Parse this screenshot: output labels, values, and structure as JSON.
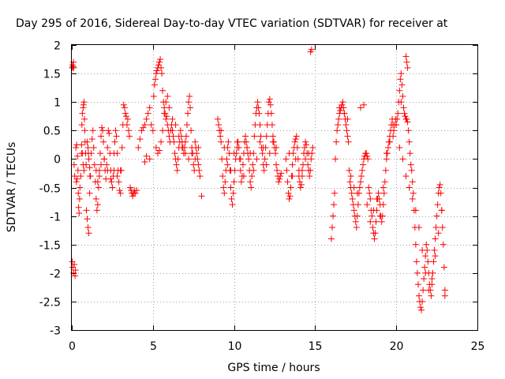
{
  "chart_data": {
    "type": "scatter",
    "title": "Day 295 of 2016, Sidereal Day-to-day VTEC variation (SDTVAR) for receiver at",
    "xlabel": "GPS time / hours",
    "ylabel": "SDTVAR / TECUs",
    "xlim": [
      0,
      25
    ],
    "ylim": [
      -3,
      2
    ],
    "x_ticks": [
      "0",
      "5",
      "10",
      "15",
      "20",
      "25"
    ],
    "y_ticks": [
      "-3",
      "-2.5",
      "-2",
      "-1.5",
      "-1",
      "-0.5",
      "0",
      "0.5",
      "1",
      "1.5",
      "2"
    ],
    "grid": true,
    "marker": "plus",
    "marker_color": "#ff0000",
    "series": [
      {
        "x": [
          0.02,
          0.05,
          0.08,
          0.1,
          0.12,
          0.03,
          0.06,
          0.1,
          0.15,
          0.2,
          0.22,
          0.18,
          0.14,
          0.25,
          0.3,
          0.32,
          0.28,
          0.35,
          0.38,
          0.4,
          0.42,
          0.45,
          0.48,
          0.5,
          0.55,
          0.6,
          0.62,
          0.65,
          0.7,
          0.72,
          0.75,
          0.78,
          0.8,
          0.82,
          0.85,
          0.88,
          0.9,
          0.95,
          1.0,
          1.05,
          1.1,
          1.15,
          1.2,
          1.25,
          1.3,
          1.35,
          1.4,
          1.45,
          1.5,
          1.55,
          1.6,
          1.65,
          1.7,
          1.75,
          1.8,
          1.85,
          1.9,
          1.95,
          2.0,
          2.05,
          2.1,
          2.15,
          2.2,
          2.25,
          2.3,
          2.35,
          2.4,
          2.45,
          2.5,
          2.55,
          2.6,
          2.65,
          2.7,
          2.75,
          2.8,
          2.85,
          2.9,
          2.95,
          3.0,
          3.05,
          3.1,
          3.15,
          3.2,
          3.25,
          3.3,
          3.35,
          3.4,
          3.45,
          3.5,
          3.55,
          3.6,
          3.65,
          3.7,
          3.75,
          3.8,
          3.85,
          3.9,
          0.95,
          1.0,
          1.02,
          1.05,
          1.1,
          1.12,
          1.5,
          1.6,
          1.7,
          1.8,
          2.0,
          2.2,
          2.4,
          2.6,
          2.8,
          3.0,
          0.6,
          0.65,
          0.7,
          0.75
        ],
        "y": [
          1.6,
          1.65,
          1.62,
          1.7,
          1.6,
          -1.8,
          -1.9,
          -2.0,
          -1.85,
          -2.05,
          -1.95,
          -0.3,
          -0.1,
          0.2,
          0.25,
          -0.35,
          -0.4,
          0.05,
          -0.2,
          -0.6,
          -0.85,
          -0.95,
          -0.7,
          -0.5,
          -0.3,
          0.1,
          0.6,
          0.8,
          0.9,
          0.95,
          1.0,
          0.7,
          0.5,
          0.3,
          0.1,
          -0.1,
          -0.9,
          -1.05,
          -1.2,
          -1.3,
          -0.6,
          -0.3,
          0.1,
          0.35,
          0.5,
          0.2,
          -0.1,
          -0.4,
          -0.7,
          -0.9,
          -0.8,
          -0.5,
          -0.2,
          0.1,
          0.4,
          0.55,
          0.5,
          0.3,
          0.0,
          -0.2,
          -0.35,
          -0.1,
          0.2,
          0.5,
          0.45,
          0.1,
          -0.2,
          -0.4,
          -0.5,
          -0.3,
          0.1,
          0.3,
          0.5,
          0.4,
          0.1,
          -0.2,
          -0.4,
          -0.55,
          -0.6,
          -0.2,
          0.2,
          0.6,
          0.95,
          0.9,
          0.8,
          0.75,
          0.6,
          0.7,
          0.5,
          0.4,
          -0.5,
          -0.55,
          -0.6,
          -0.65,
          -0.6,
          -0.55,
          -0.6,
          0.3,
          0.2,
          0.1,
          0.0,
          -0.15,
          -0.3,
          -0.2,
          -0.4,
          -0.3,
          -0.1,
          0.0,
          -0.2,
          -0.35,
          -0.2,
          -0.3,
          -0.2,
          0.25,
          0.1,
          -0.1,
          -0.2
        ]
      },
      {
        "x": [
          3.9,
          4.0,
          4.1,
          4.2,
          4.3,
          4.4,
          4.5,
          4.6,
          4.7,
          4.8,
          4.9,
          5.0,
          5.05,
          5.1,
          5.15,
          5.2,
          5.25,
          5.3,
          5.35,
          5.4,
          5.45,
          5.5,
          5.55,
          5.6,
          5.65,
          5.7,
          5.75,
          5.8,
          5.85,
          5.9,
          5.95,
          6.0,
          6.05,
          6.1,
          6.15,
          6.2,
          6.25,
          6.3,
          6.35,
          6.4,
          6.45,
          6.5,
          6.55,
          6.6,
          6.65,
          6.7,
          6.75,
          6.8,
          6.85,
          6.9,
          6.95,
          7.0,
          7.05,
          7.1,
          7.15,
          7.2,
          7.25,
          7.3,
          7.35,
          7.4,
          7.45,
          7.5,
          7.55,
          7.6,
          7.65,
          7.7,
          7.75,
          7.8,
          7.85,
          7.9,
          8.0,
          5.2,
          5.3,
          5.4,
          5.5,
          5.6,
          5.7,
          5.8,
          5.9,
          6.0,
          6.2,
          6.4,
          6.6,
          6.8,
          7.0,
          7.2,
          7.4,
          7.6,
          7.8,
          4.8,
          4.6,
          4.5
        ],
        "y": [
          -0.6,
          -0.55,
          0.2,
          0.35,
          0.5,
          0.55,
          0.6,
          0.7,
          0.8,
          0.9,
          0.6,
          0.5,
          1.1,
          1.3,
          1.4,
          1.5,
          1.55,
          1.6,
          1.65,
          1.7,
          1.75,
          1.6,
          1.5,
          1.2,
          1.0,
          0.9,
          0.8,
          0.7,
          0.75,
          0.6,
          0.5,
          0.4,
          0.3,
          0.5,
          0.6,
          0.5,
          0.4,
          0.3,
          0.1,
          0.0,
          -0.1,
          -0.2,
          0.0,
          0.2,
          0.3,
          0.5,
          0.4,
          0.3,
          0.2,
          0.1,
          0.2,
          0.3,
          0.4,
          0.6,
          0.8,
          1.0,
          1.1,
          0.9,
          0.5,
          0.2,
          0.1,
          -0.1,
          -0.2,
          0.0,
          0.2,
          0.1,
          0.0,
          -0.1,
          -0.2,
          -0.3,
          -0.65,
          0.2,
          0.1,
          0.15,
          0.3,
          0.5,
          0.8,
          1.0,
          1.1,
          0.9,
          0.7,
          0.6,
          0.4,
          0.2,
          0.1,
          0.0,
          0.1,
          0.3,
          0.2,
          0.0,
          0.05,
          -0.05
        ]
      },
      {
        "x": [
          9.0,
          9.05,
          9.1,
          9.15,
          9.2,
          9.25,
          9.3,
          9.35,
          9.4,
          9.45,
          9.5,
          9.55,
          9.6,
          9.65,
          9.7,
          9.75,
          9.8,
          9.85,
          9.9,
          9.95,
          10.0,
          10.05,
          10.1,
          10.15,
          10.2,
          10.25,
          10.3,
          10.35,
          10.4,
          10.45,
          10.5,
          10.55,
          10.6,
          10.65,
          10.7,
          10.75,
          10.8,
          10.85,
          10.9,
          10.95,
          11.0,
          11.05,
          11.1,
          11.15,
          11.2,
          11.25,
          11.3,
          11.35,
          11.4,
          11.45,
          11.5,
          11.55,
          11.6,
          11.65,
          11.7,
          11.75,
          11.8,
          11.85,
          11.9,
          11.95,
          12.0,
          12.05,
          12.1,
          12.15,
          12.2,
          12.25,
          12.3,
          12.35,
          12.4,
          12.45,
          12.5,
          12.55,
          12.6,
          12.65,
          12.7,
          12.75,
          12.8,
          12.85,
          12.9,
          9.2,
          9.4,
          9.6,
          9.8,
          10.0,
          10.2,
          10.4,
          10.6,
          10.8,
          11.0,
          11.2,
          11.4,
          11.6,
          11.8,
          12.0,
          12.2,
          12.4,
          12.6
        ],
        "y": [
          0.7,
          0.6,
          0.5,
          0.4,
          0.3,
          0.0,
          -0.3,
          -0.5,
          -0.6,
          -0.4,
          -0.2,
          0.0,
          0.2,
          0.3,
          0.1,
          -0.2,
          -0.5,
          -0.7,
          -0.8,
          -0.6,
          -0.4,
          -0.2,
          0.0,
          0.1,
          0.2,
          0.3,
          0.2,
          0.0,
          -0.2,
          -0.4,
          -0.3,
          -0.1,
          0.1,
          0.3,
          0.4,
          0.3,
          0.2,
          0.1,
          0.0,
          -0.2,
          -0.4,
          -0.5,
          -0.3,
          -0.1,
          0.1,
          0.4,
          0.6,
          0.8,
          0.9,
          1.0,
          0.9,
          0.8,
          0.6,
          0.4,
          0.2,
          0.1,
          -0.1,
          -0.2,
          0.0,
          0.2,
          0.4,
          0.6,
          0.8,
          1.0,
          1.05,
          0.95,
          0.8,
          0.6,
          0.4,
          0.3,
          0.2,
          0.1,
          -0.1,
          -0.2,
          -0.3,
          -0.4,
          -0.35,
          -0.3,
          -0.25,
          0.5,
          0.2,
          -0.1,
          -0.2,
          0.1,
          0.3,
          0.0,
          -0.3,
          0.2,
          0.1,
          -0.2,
          0.0,
          0.3,
          0.2,
          -0.1,
          0.1,
          0.3,
          0.2
        ]
      },
      {
        "x": [
          13.2,
          13.25,
          13.3,
          13.35,
          13.4,
          13.45,
          13.5,
          13.55,
          13.6,
          13.65,
          13.7,
          13.75,
          13.8,
          13.85,
          13.9,
          13.95,
          14.0,
          14.05,
          14.1,
          14.15,
          14.2,
          14.25,
          14.3,
          14.35,
          14.4,
          14.45,
          14.5,
          14.55,
          14.6,
          14.65,
          14.7,
          14.75,
          14.8,
          14.85,
          13.4,
          13.6,
          13.8,
          14.0,
          14.2,
          14.4,
          14.6,
          14.72,
          14.78
        ],
        "y": [
          0.0,
          -0.2,
          -0.4,
          -0.6,
          -0.7,
          -0.65,
          -0.5,
          -0.3,
          -0.1,
          0.1,
          0.2,
          0.3,
          0.35,
          0.4,
          0.2,
          0.0,
          -0.2,
          -0.4,
          -0.5,
          -0.45,
          -0.3,
          -0.1,
          0.1,
          0.2,
          0.3,
          0.25,
          0.1,
          -0.1,
          -0.2,
          -0.3,
          -0.2,
          0.0,
          0.1,
          0.2,
          0.1,
          -0.3,
          0.0,
          -0.3,
          -0.2,
          0.0,
          0.1,
          1.88,
          1.92
        ]
      },
      {
        "x": [
          16.0,
          16.05,
          16.1,
          16.15,
          16.2,
          16.25,
          16.3,
          16.35,
          16.4,
          16.45,
          16.5,
          16.55,
          16.6,
          16.65,
          16.7,
          16.75,
          16.8,
          16.85,
          16.9,
          16.95,
          17.0,
          17.05,
          17.1,
          17.15,
          17.2,
          17.25,
          17.3,
          17.35,
          17.4,
          17.45,
          17.5,
          17.55,
          17.6,
          17.65,
          17.7,
          17.75,
          17.8,
          17.85,
          17.9,
          17.95,
          18.0,
          18.05,
          18.1,
          18.15,
          18.2,
          18.25,
          18.3,
          18.35,
          18.4,
          18.45,
          18.5,
          18.55,
          18.6,
          18.65,
          18.7,
          18.75,
          18.8,
          18.85,
          18.9,
          18.95,
          19.0,
          19.05,
          19.1,
          19.15,
          19.2,
          19.25,
          19.3,
          19.35,
          19.4,
          19.45,
          19.5,
          19.55,
          19.6,
          19.65,
          19.7,
          19.75,
          19.8,
          19.85,
          19.9,
          19.95,
          16.5,
          16.8,
          17.0,
          17.2,
          17.4,
          17.6,
          17.8,
          18.0,
          18.2,
          18.4,
          18.6,
          18.8,
          19.0,
          19.2,
          19.4,
          19.6,
          19.8
        ],
        "y": [
          -1.4,
          -1.2,
          -1.0,
          -0.8,
          -0.6,
          0.0,
          0.3,
          0.5,
          0.6,
          0.7,
          0.8,
          0.85,
          0.9,
          0.95,
          1.0,
          0.9,
          0.8,
          0.7,
          0.6,
          0.5,
          0.4,
          0.3,
          -0.2,
          -0.4,
          -0.5,
          -0.6,
          -0.7,
          -0.8,
          -0.9,
          -1.0,
          -1.1,
          -1.2,
          -1.0,
          -0.8,
          -0.6,
          -0.5,
          -0.4,
          -0.3,
          -0.2,
          -0.1,
          0.0,
          0.05,
          0.1,
          0.1,
          0.05,
          0.0,
          -0.5,
          -0.6,
          -0.7,
          -0.9,
          -1.0,
          -1.2,
          -1.3,
          -1.4,
          -1.3,
          -1.1,
          -0.9,
          -0.7,
          -0.6,
          -0.7,
          -0.8,
          -1.0,
          -1.1,
          -1.0,
          -0.8,
          -0.6,
          -0.4,
          -0.2,
          0.0,
          0.1,
          0.2,
          0.3,
          0.4,
          0.5,
          0.6,
          0.7,
          0.6,
          0.5,
          0.6,
          0.7,
          0.9,
          0.8,
          0.7,
          -0.3,
          -0.5,
          -0.6,
          0.9,
          0.95,
          -0.8,
          -1.1,
          -0.9,
          -0.7,
          -1.0,
          -0.5,
          0.1,
          0.3,
          0.4
        ]
      },
      {
        "x": [
          20.0,
          20.05,
          20.1,
          20.15,
          20.2,
          20.25,
          20.3,
          20.35,
          20.4,
          20.45,
          20.5,
          20.55,
          20.6,
          20.65,
          20.7,
          20.75,
          20.8,
          20.85,
          20.9,
          20.95,
          21.0,
          21.05,
          21.1,
          21.15,
          21.2,
          21.25,
          21.3,
          21.35,
          21.4,
          21.45,
          21.5,
          21.55,
          21.6,
          21.65,
          21.7,
          21.75,
          21.8,
          21.85,
          21.9,
          21.95,
          22.0,
          22.05,
          22.1,
          22.15,
          22.2,
          22.25,
          22.3,
          22.35,
          22.4,
          22.45,
          22.5,
          22.55,
          22.6,
          22.65,
          22.7,
          22.75,
          22.8,
          22.85,
          22.9,
          22.95,
          23.0,
          20.2,
          20.4,
          20.6,
          20.8,
          21.0,
          21.2,
          21.4,
          21.6,
          21.8,
          22.0,
          22.2,
          22.4,
          22.6,
          22.8,
          23.0,
          20.6,
          20.65,
          20.7,
          20.3
        ],
        "y": [
          0.6,
          0.7,
          0.8,
          1.0,
          1.2,
          1.4,
          1.5,
          1.3,
          1.1,
          0.9,
          0.8,
          0.75,
          0.7,
          0.7,
          0.65,
          0.5,
          0.3,
          0.1,
          -0.1,
          -0.2,
          -0.4,
          -0.6,
          -0.9,
          -1.2,
          -1.5,
          -1.8,
          -2.0,
          -2.2,
          -2.4,
          -2.5,
          -2.6,
          -2.65,
          -2.5,
          -2.3,
          -2.1,
          -1.9,
          -1.7,
          -1.5,
          -1.6,
          -1.8,
          -2.0,
          -2.2,
          -2.3,
          -2.4,
          -2.2,
          -2.0,
          -1.8,
          -1.6,
          -1.4,
          -1.2,
          -1.0,
          -0.8,
          -0.6,
          -0.5,
          -0.45,
          -0.6,
          -0.9,
          -1.2,
          -1.5,
          -1.9,
          -2.3,
          0.2,
          0.0,
          -0.3,
          -0.5,
          -0.7,
          -0.9,
          -1.2,
          -1.6,
          -2.0,
          -2.3,
          -2.1,
          -1.7,
          -1.3,
          -0.9,
          -2.4,
          1.8,
          1.7,
          1.6,
          1.0
        ]
      }
    ]
  }
}
